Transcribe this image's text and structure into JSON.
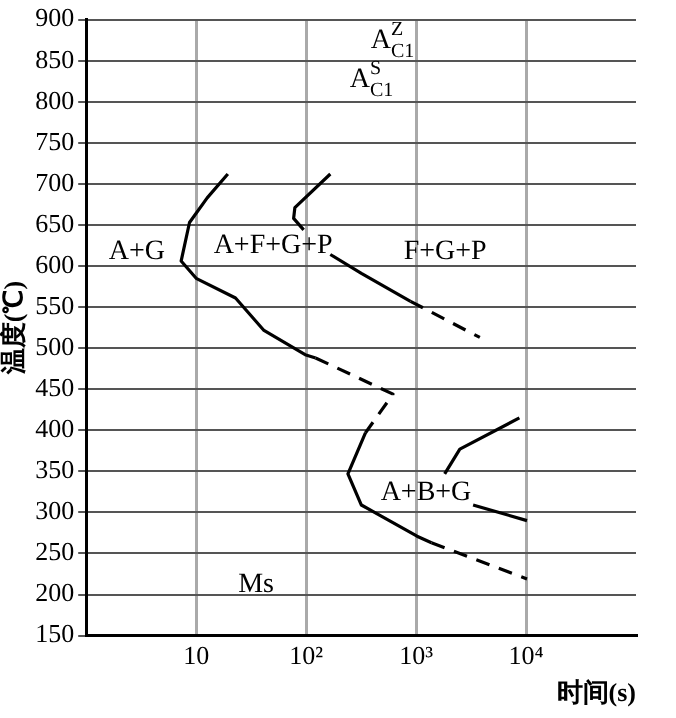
{
  "chart_data": {
    "type": "line",
    "xlabel": "时间(s)",
    "ylabel": "温度(℃)",
    "log": "x",
    "grid": true,
    "legend": false,
    "marker": "none",
    "xlim": [
      1,
      100000
    ],
    "xticks": [
      {
        "value": 10,
        "label": "10"
      },
      {
        "value": 100,
        "label": "10²"
      },
      {
        "value": 1000,
        "label": "10³"
      },
      {
        "value": 10000,
        "label": "10⁴"
      }
    ],
    "ylim": [
      150,
      900
    ],
    "yticks": [
      150,
      200,
      250,
      300,
      350,
      400,
      450,
      500,
      550,
      600,
      650,
      700,
      750,
      800,
      850,
      900
    ],
    "series": [
      {
        "color": "#000000",
        "line_style": "solid",
        "x": [
          19.4,
          12.6,
          8.7,
          7.3,
          10,
          22.8,
          41,
          98,
          122
        ],
        "values": [
          712,
          683,
          653,
          606,
          585,
          561,
          522,
          492,
          488
        ]
      },
      {
        "color": "#000000",
        "line_style": "dashed",
        "x": [
          122,
          617,
          347
        ],
        "values": [
          488,
          444,
          397
        ]
      },
      {
        "color": "#000000",
        "line_style": "solid",
        "x": [
          347,
          240,
          318,
          1020,
          1380
        ],
        "values": [
          397,
          347,
          309,
          271,
          263
        ]
      },
      {
        "color": "#000000",
        "line_style": "dashed",
        "x": [
          1380,
          10200
        ],
        "values": [
          263,
          219
        ]
      },
      {
        "color": "#000000",
        "line_style": "solid",
        "x": [
          166,
          79,
          77,
          95
        ],
        "values": [
          712,
          671,
          658,
          644
        ]
      },
      {
        "color": "#000000",
        "line_style": "solid",
        "x": [
          166,
          318,
          890
        ],
        "values": [
          614,
          591,
          557
        ]
      },
      {
        "color": "#000000",
        "line_style": "dashed",
        "x": [
          890,
          3800
        ],
        "values": [
          557,
          513
        ]
      },
      {
        "color": "#000000",
        "line_style": "solid",
        "x": [
          8700,
          2500,
          1820
        ],
        "values": [
          415,
          377,
          347
        ]
      },
      {
        "color": "#000000",
        "line_style": "solid",
        "x": [
          3300,
          10200
        ],
        "values": [
          309,
          290
        ]
      }
    ],
    "annotations": [
      "A$^{Z}$$_{C1}$",
      "A$^{S}$$_{C1}$",
      "A+G",
      "A+F+G+P",
      "F+G+P",
      "A+B+G",
      "Ms"
    ]
  }
}
